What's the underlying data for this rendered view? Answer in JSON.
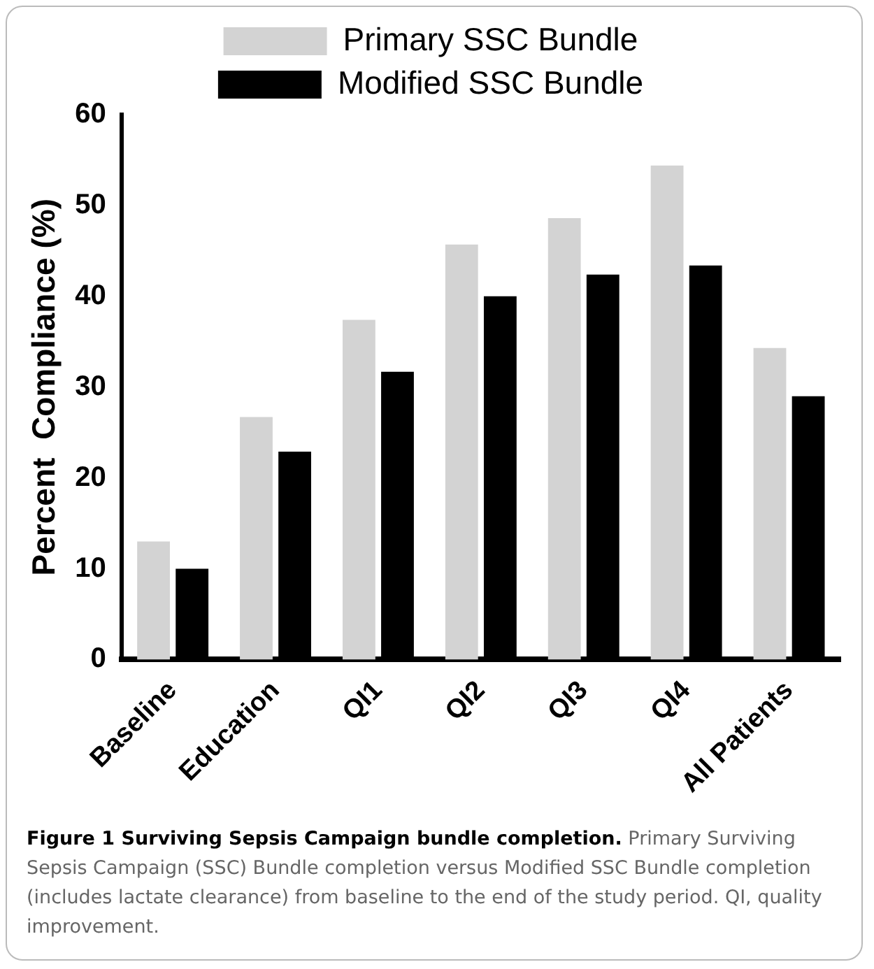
{
  "chart_data": {
    "type": "bar",
    "title": "Figure 1 Surviving Sepsis Campaign bundle completion.",
    "annotations": [
      "Primary Surviving Sepsis Campaign (SSC) Bundle completion versus Modified SSC Bundle completion (includes lactate clearance) from baseline to the end of the study period. QI, quality improvement."
    ],
    "ylabel": "Percent  Compliance (%)",
    "categories": [
      "Baseline",
      "Education",
      "QI1",
      "QI2",
      "QI3",
      "QI4",
      "All Patients"
    ],
    "series": [
      {
        "name": "Primary SSC Bundle",
        "color": "#d3d3d3",
        "values": [
          13.0,
          26.7,
          37.4,
          45.7,
          48.6,
          54.4,
          34.3
        ]
      },
      {
        "name": "Modified SSC Bundle",
        "color": "#000000",
        "values": [
          10.0,
          22.9,
          31.7,
          40.0,
          42.4,
          43.4,
          29.0
        ]
      }
    ],
    "ylim": [
      0,
      60
    ],
    "yticks": [
      0,
      10,
      20,
      30,
      40,
      50,
      60
    ],
    "grid": false,
    "legend": "top"
  }
}
